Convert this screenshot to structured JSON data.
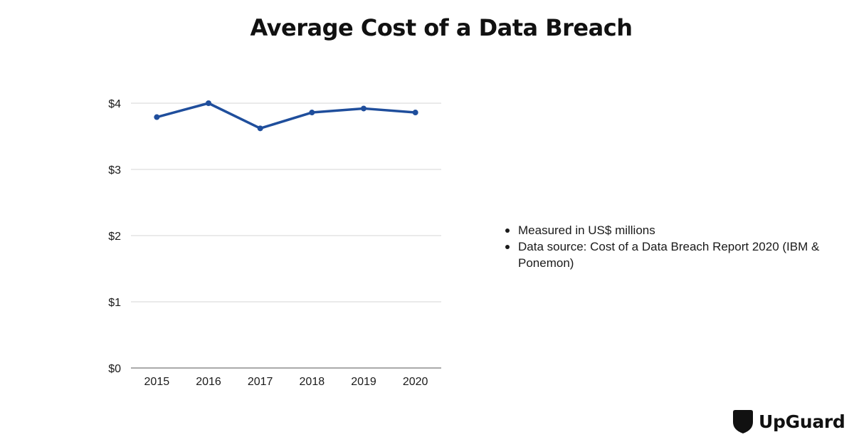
{
  "chart_data": {
    "type": "line",
    "title": "Average Cost of a Data Breach",
    "xlabel": "",
    "ylabel": "",
    "categories": [
      "2015",
      "2016",
      "2017",
      "2018",
      "2019",
      "2020"
    ],
    "series": [
      {
        "values": [
          3.79,
          4.0,
          3.62,
          3.86,
          3.92,
          3.86
        ],
        "color": "#1f4e9c"
      }
    ],
    "ylim": [
      0,
      4
    ],
    "y_ticks": [
      "$0",
      "$1",
      "$2",
      "$3",
      "$4"
    ],
    "grid": true,
    "legend": "none"
  },
  "notes": [
    "Measured in US$ millions",
    "Data source: Cost of a Data Breach Report 2020 (IBM & Ponemon)"
  ],
  "brand": {
    "name": "UpGuard",
    "icon": "upguard-shield-icon"
  }
}
